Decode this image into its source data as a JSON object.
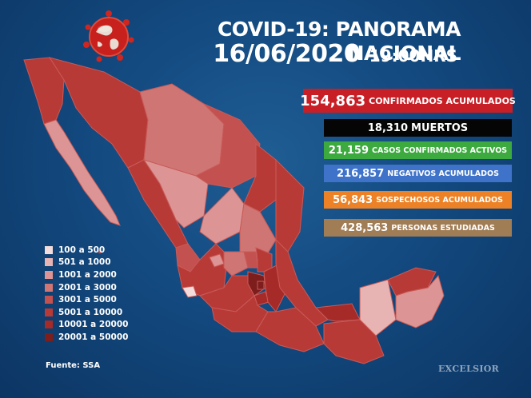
{
  "header": {
    "title": "COVID-19: PANORAMA NACIONAL",
    "date": "16/06/2020",
    "time": "19:00HRS"
  },
  "stats": {
    "confirmados": {
      "value": "154,863",
      "label": "CONFIRMADOS ACUMULADOS",
      "color": "#c81f26"
    },
    "muertos": {
      "value": "18,310",
      "label": "MUERTOS",
      "color": "#050505"
    },
    "activos": {
      "value": "21,159",
      "label": "CASOS CONFIRMADOS ACTIVOS",
      "color": "#3caa3e"
    },
    "negativos": {
      "value": "216,857",
      "label": "NEGATIVOS ACUMULADOS",
      "color": "#3e73c9"
    },
    "sospechosos": {
      "value": "56,843",
      "label": "SOSPECHOSOS ACUMULADOS",
      "color": "#ec8125"
    },
    "estudiadas": {
      "value": "428,563",
      "label": "PERSONAS ESTUDIADAS",
      "color": "#a07d55"
    }
  },
  "legend": [
    {
      "label": "100 a 500",
      "color": "#f4dcdc"
    },
    {
      "label": "501 a 1000",
      "color": "#e8b4b3"
    },
    {
      "label": "1001 a 2000",
      "color": "#dc9594"
    },
    {
      "label": "2001 a 3000",
      "color": "#cf7574"
    },
    {
      "label": "3001 a 5000",
      "color": "#c3514f"
    },
    {
      "label": "5001 a 10000",
      "color": "#b83a37"
    },
    {
      "label": "10001 a 20000",
      "color": "#a52a28"
    },
    {
      "label": "20001 a 50000",
      "color": "#7d1d1c"
    }
  ],
  "source": "Fuente: SSA",
  "brand": "EXCELSIOR",
  "map_icons": {
    "globe": "globe-virus-icon"
  }
}
